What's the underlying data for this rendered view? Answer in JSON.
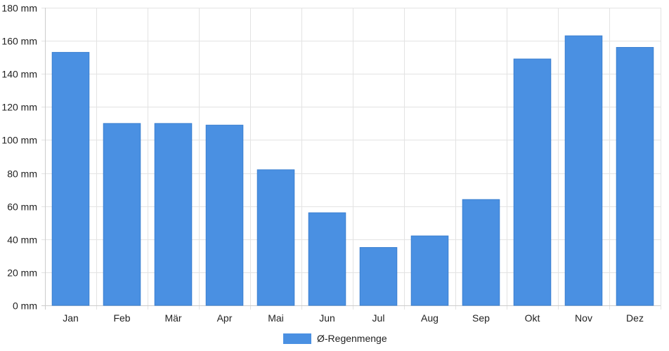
{
  "chart_data": {
    "type": "bar",
    "categories": [
      "Jan",
      "Feb",
      "Mär",
      "Apr",
      "Mai",
      "Jun",
      "Jul",
      "Aug",
      "Sep",
      "Okt",
      "Nov",
      "Dez"
    ],
    "series": [
      {
        "name": "Ø-Regenmenge",
        "values": [
          153,
          110,
          110,
          109,
          82,
          56,
          35,
          42,
          64,
          149,
          163,
          156
        ]
      }
    ],
    "ylim": [
      0,
      180
    ],
    "yticks": [
      0,
      20,
      40,
      60,
      80,
      100,
      120,
      140,
      160,
      180
    ],
    "y_tick_suffix": " mm",
    "grid": true,
    "legend_position": "bottom-center",
    "colors": {
      "bar": "#4a90e2",
      "grid": "#e3e3e3",
      "axis": "#cccccc"
    }
  }
}
